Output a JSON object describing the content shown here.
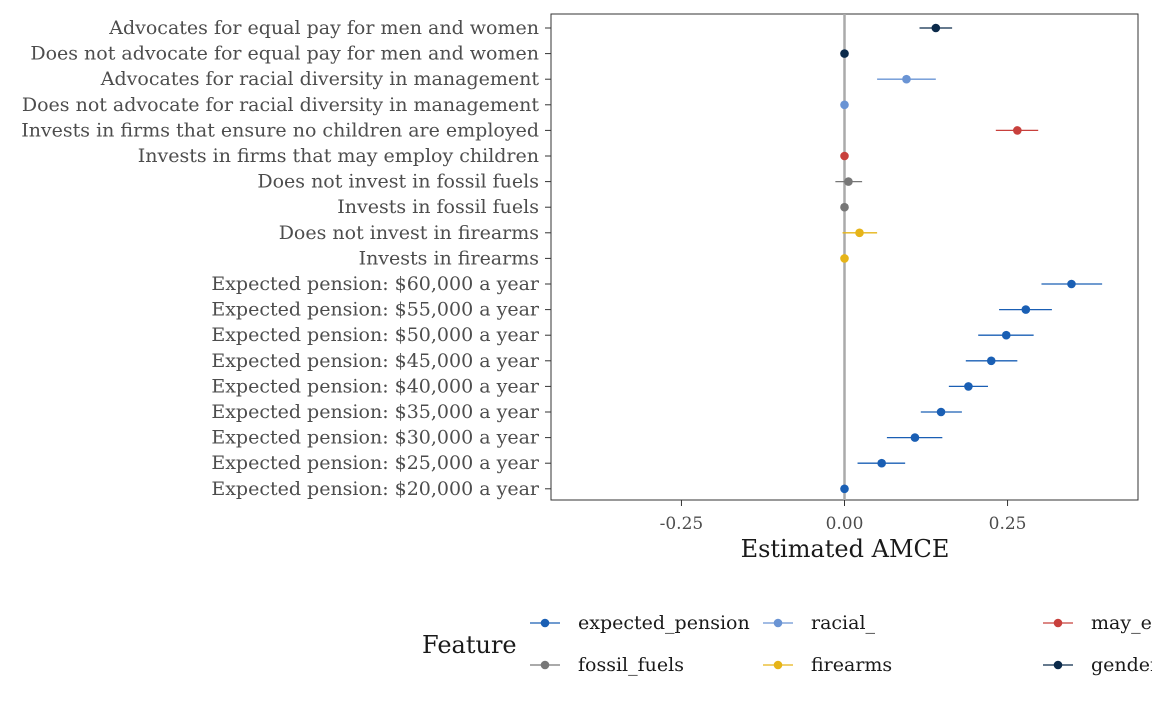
{
  "chart_data": {
    "type": "scatter",
    "subtype": "point-range (coefficient plot)",
    "xlabel": "Estimated AMCE",
    "xlim": [
      -0.45,
      0.45
    ],
    "xticks": [
      -0.25,
      0.0,
      0.25
    ],
    "xtick_labels": [
      "-0.25",
      "0.00",
      "0.25"
    ],
    "reference_line_x": 0,
    "grid": false,
    "legend": {
      "title": "Feature",
      "position": "bottom",
      "entries": [
        {
          "name": "expected_pension",
          "label": "expected_pension",
          "color": "#1a5fb4"
        },
        {
          "name": "fossil_fuels",
          "label": "fossil_fuels",
          "color": "#777777"
        },
        {
          "name": "racial_diversity",
          "label": "racial_",
          "color": "#6a94d4"
        },
        {
          "name": "firearms",
          "label": "firearms",
          "color": "#e6b418"
        },
        {
          "name": "may_employ_children",
          "label": "may_employ_children",
          "color": "#c8403c"
        },
        {
          "name": "gender",
          "label": "gender",
          "color": "#0b2a4a"
        }
      ]
    },
    "points": [
      {
        "label": "Advocates for equal pay for men and women",
        "feature": "gender",
        "estimate": 0.14,
        "lower": 0.115,
        "upper": 0.165
      },
      {
        "label": "Does not advocate for equal pay for men and women",
        "feature": "gender",
        "estimate": 0.0,
        "lower": 0.0,
        "upper": 0.0
      },
      {
        "label": "Advocates for racial diversity in management",
        "feature": "racial_diversity",
        "estimate": 0.095,
        "lower": 0.05,
        "upper": 0.14
      },
      {
        "label": "Does not advocate for racial diversity in management",
        "feature": "racial_diversity",
        "estimate": 0.0,
        "lower": 0.0,
        "upper": 0.0
      },
      {
        "label": "Invests in firms that ensure no children are employed",
        "feature": "may_employ_children",
        "estimate": 0.265,
        "lower": 0.232,
        "upper": 0.297
      },
      {
        "label": "Invests in firms that may employ children",
        "feature": "may_employ_children",
        "estimate": 0.0,
        "lower": 0.0,
        "upper": 0.0
      },
      {
        "label": "Does not invest in fossil fuels",
        "feature": "fossil_fuels",
        "estimate": 0.006,
        "lower": -0.014,
        "upper": 0.027
      },
      {
        "label": "Invests in fossil fuels",
        "feature": "fossil_fuels",
        "estimate": 0.0,
        "lower": 0.0,
        "upper": 0.0
      },
      {
        "label": "Does not invest in firearms",
        "feature": "firearms",
        "estimate": 0.023,
        "lower": -0.003,
        "upper": 0.05
      },
      {
        "label": "Invests in firearms",
        "feature": "firearms",
        "estimate": 0.0,
        "lower": 0.0,
        "upper": 0.0
      },
      {
        "label": "Expected pension: $60,000 a year",
        "feature": "expected_pension",
        "estimate": 0.348,
        "lower": 0.302,
        "upper": 0.395
      },
      {
        "label": "Expected pension: $55,000 a year",
        "feature": "expected_pension",
        "estimate": 0.278,
        "lower": 0.237,
        "upper": 0.318
      },
      {
        "label": "Expected pension: $50,000 a year",
        "feature": "expected_pension",
        "estimate": 0.248,
        "lower": 0.205,
        "upper": 0.29
      },
      {
        "label": "Expected pension: $45,000 a year",
        "feature": "expected_pension",
        "estimate": 0.225,
        "lower": 0.186,
        "upper": 0.265
      },
      {
        "label": "Expected pension: $40,000 a year",
        "feature": "expected_pension",
        "estimate": 0.19,
        "lower": 0.16,
        "upper": 0.22
      },
      {
        "label": "Expected pension: $35,000 a year",
        "feature": "expected_pension",
        "estimate": 0.148,
        "lower": 0.117,
        "upper": 0.18
      },
      {
        "label": "Expected pension: $30,000 a year",
        "feature": "expected_pension",
        "estimate": 0.108,
        "lower": 0.065,
        "upper": 0.15
      },
      {
        "label": "Expected pension: $25,000 a year",
        "feature": "expected_pension",
        "estimate": 0.057,
        "lower": 0.02,
        "upper": 0.093
      },
      {
        "label": "Expected pension: $20,000 a year",
        "feature": "expected_pension",
        "estimate": 0.0,
        "lower": 0.0,
        "upper": 0.0
      }
    ]
  }
}
